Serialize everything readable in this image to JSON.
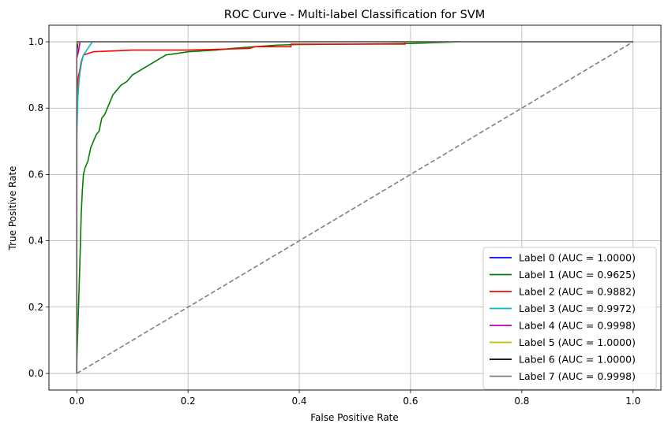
{
  "chart_data": {
    "type": "line",
    "title": "ROC Curve - Multi-label Classification for SVM",
    "xlabel": "False Positive Rate",
    "ylabel": "True Positive Rate",
    "xlim": [
      -0.05,
      1.05
    ],
    "ylim": [
      -0.05,
      1.05
    ],
    "xticks": [
      0.0,
      0.2,
      0.4,
      0.6,
      0.8,
      1.0
    ],
    "xtick_labels": [
      "0.0",
      "0.2",
      "0.4",
      "0.6",
      "0.8",
      "1.0"
    ],
    "yticks": [
      0.0,
      0.2,
      0.4,
      0.6,
      0.8,
      1.0
    ],
    "ytick_labels": [
      "0.0",
      "0.2",
      "0.4",
      "0.6",
      "0.8",
      "1.0"
    ],
    "grid": true,
    "legend_position": "lower-right",
    "diagonal": {
      "points": [
        [
          0,
          0
        ],
        [
          1,
          1
        ]
      ],
      "color": "#808080",
      "style": "dashed"
    },
    "series": [
      {
        "name": "Label 0 (AUC = 1.0000)",
        "color": "#0000ff",
        "points": [
          [
            0,
            0
          ],
          [
            0,
            1
          ],
          [
            1,
            1
          ]
        ]
      },
      {
        "name": "Label 1 (AUC = 0.9625)",
        "color": "#008000",
        "points": [
          [
            0,
            0
          ],
          [
            0,
            0.03
          ],
          [
            0.002,
            0.14
          ],
          [
            0.005,
            0.3
          ],
          [
            0.008,
            0.48
          ],
          [
            0.01,
            0.55
          ],
          [
            0.012,
            0.6
          ],
          [
            0.015,
            0.62
          ],
          [
            0.02,
            0.64
          ],
          [
            0.025,
            0.68
          ],
          [
            0.03,
            0.7
          ],
          [
            0.035,
            0.72
          ],
          [
            0.04,
            0.73
          ],
          [
            0.045,
            0.77
          ],
          [
            0.05,
            0.78
          ],
          [
            0.055,
            0.8
          ],
          [
            0.06,
            0.82
          ],
          [
            0.065,
            0.84
          ],
          [
            0.07,
            0.85
          ],
          [
            0.08,
            0.87
          ],
          [
            0.09,
            0.88
          ],
          [
            0.1,
            0.9
          ],
          [
            0.11,
            0.91
          ],
          [
            0.12,
            0.92
          ],
          [
            0.13,
            0.93
          ],
          [
            0.14,
            0.94
          ],
          [
            0.15,
            0.95
          ],
          [
            0.16,
            0.96
          ],
          [
            0.18,
            0.965
          ],
          [
            0.2,
            0.97
          ],
          [
            0.25,
            0.975
          ],
          [
            0.28,
            0.98
          ],
          [
            0.32,
            0.985
          ],
          [
            0.36,
            0.99
          ],
          [
            0.4,
            0.992
          ],
          [
            0.5,
            0.993
          ],
          [
            0.6,
            0.995
          ],
          [
            0.69,
            1.0
          ],
          [
            1.0,
            1.0
          ]
        ]
      },
      {
        "name": "Label 2 (AUC = 0.9882)",
        "color": "#ff0000",
        "points": [
          [
            0,
            0
          ],
          [
            0,
            0.8
          ],
          [
            0.002,
            0.89
          ],
          [
            0.005,
            0.91
          ],
          [
            0.008,
            0.94
          ],
          [
            0.012,
            0.96
          ],
          [
            0.03,
            0.97
          ],
          [
            0.1,
            0.975
          ],
          [
            0.2,
            0.975
          ],
          [
            0.31,
            0.98
          ],
          [
            0.32,
            0.985
          ],
          [
            0.385,
            0.985
          ],
          [
            0.385,
            0.993
          ],
          [
            0.59,
            0.993
          ],
          [
            0.59,
            1.0
          ],
          [
            1.0,
            1.0
          ]
        ]
      },
      {
        "name": "Label 3 (AUC = 0.9972)",
        "color": "#00bfbf",
        "points": [
          [
            0,
            0
          ],
          [
            0,
            0.7
          ],
          [
            0.002,
            0.83
          ],
          [
            0.004,
            0.88
          ],
          [
            0.006,
            0.91
          ],
          [
            0.009,
            0.94
          ],
          [
            0.012,
            0.96
          ],
          [
            0.016,
            0.97
          ],
          [
            0.02,
            0.98
          ],
          [
            0.024,
            0.99
          ],
          [
            0.028,
            1.0
          ],
          [
            1.0,
            1.0
          ]
        ]
      },
      {
        "name": "Label 4 (AUC = 0.9998)",
        "color": "#bf00bf",
        "points": [
          [
            0,
            0
          ],
          [
            0,
            0.95
          ],
          [
            0.003,
            0.97
          ],
          [
            0.006,
            1.0
          ],
          [
            1.0,
            1.0
          ]
        ]
      },
      {
        "name": "Label 5 (AUC = 1.0000)",
        "color": "#bfbf00",
        "points": [
          [
            0,
            0
          ],
          [
            0,
            1
          ],
          [
            1,
            1
          ]
        ]
      },
      {
        "name": "Label 6 (AUC = 1.0000)",
        "color": "#000000",
        "points": [
          [
            0,
            0
          ],
          [
            0,
            0.96
          ],
          [
            0.001,
            0.98
          ],
          [
            0.002,
            1.0
          ],
          [
            1.0,
            1.0
          ]
        ]
      },
      {
        "name": "Label 7 (AUC = 0.9998)",
        "color": "#808080",
        "points": [
          [
            0,
            0
          ],
          [
            0,
            0.99
          ],
          [
            0.003,
            1.0
          ],
          [
            1.0,
            1.0
          ]
        ]
      }
    ]
  }
}
